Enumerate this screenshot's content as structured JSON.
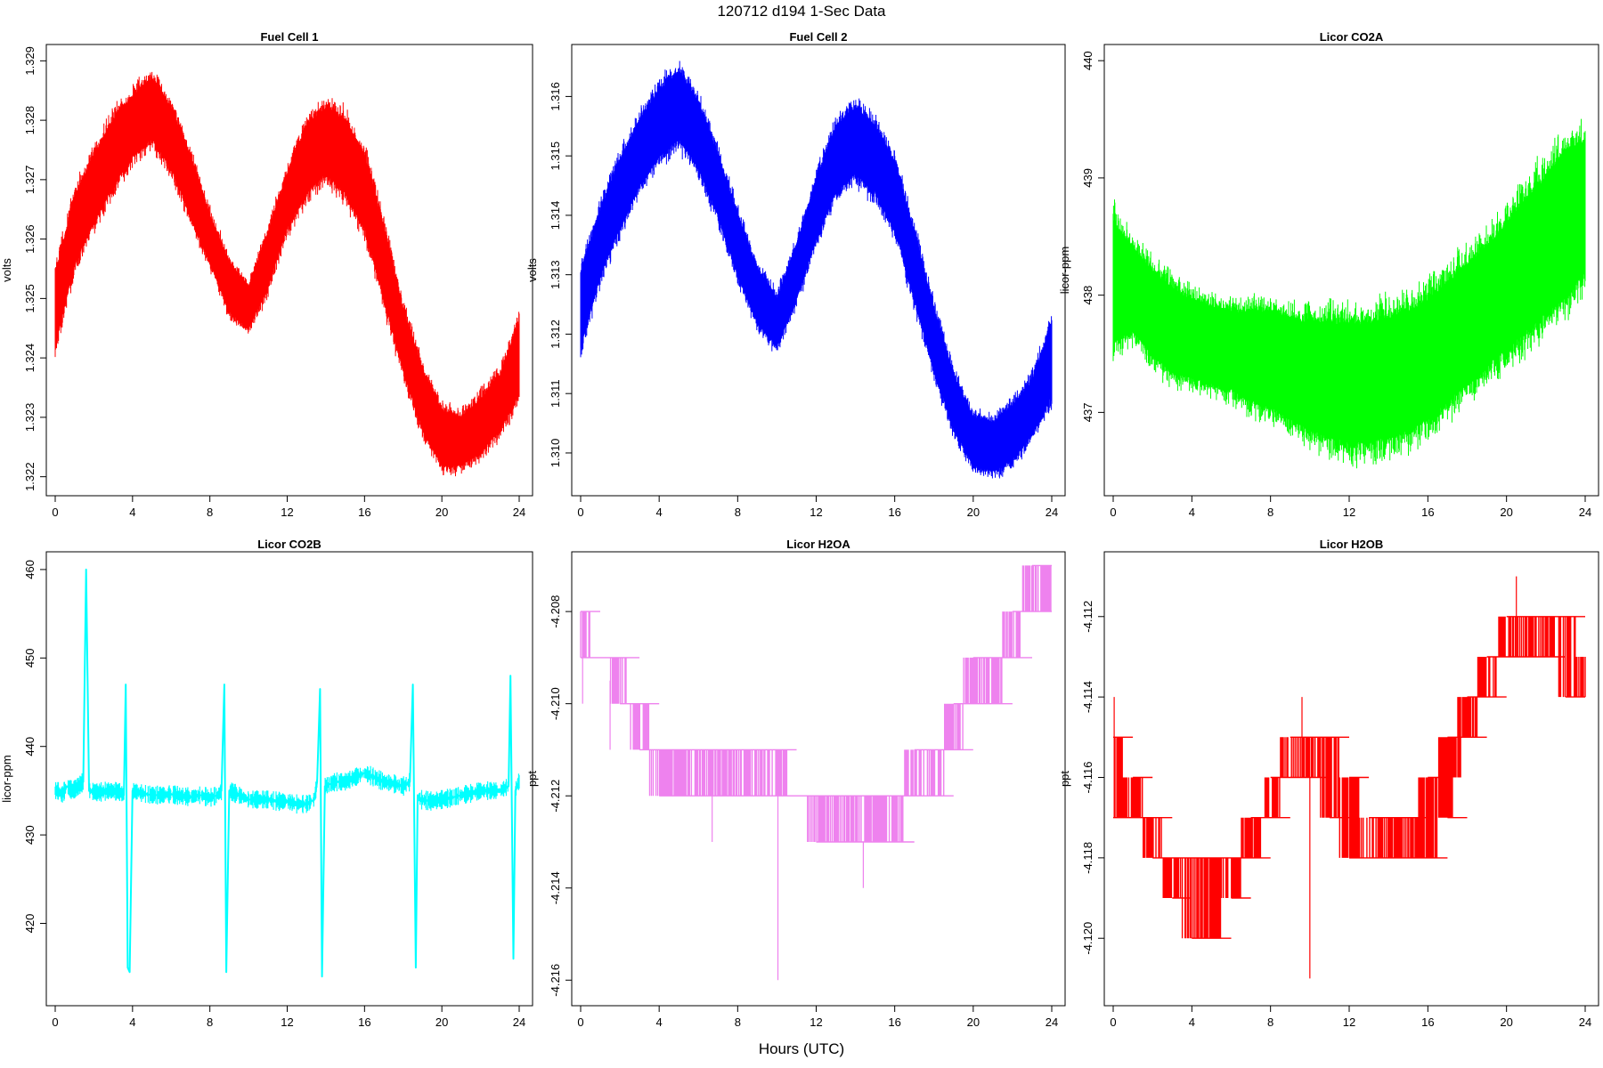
{
  "figure": {
    "title": "120712   d194   1-Sec Data",
    "xlabel": "Hours (UTC)"
  },
  "chart_data": [
    {
      "type": "line",
      "title": "Fuel Cell 1",
      "ylabel": "volts",
      "color": "#ff0000",
      "xlim": [
        0,
        24
      ],
      "xticks": [
        0,
        4,
        8,
        12,
        16,
        20,
        24
      ],
      "ylim": [
        1.3218,
        1.3292
      ],
      "yticks": [
        1.322,
        1.323,
        1.324,
        1.325,
        1.326,
        1.327,
        1.328,
        1.329
      ],
      "ytick_labels": [
        "1.322",
        "1.323",
        "1.324",
        "1.325",
        "1.326",
        "1.327",
        "1.328",
        "1.329"
      ],
      "band": {
        "x": [
          0,
          1,
          2,
          3,
          4,
          5,
          6,
          7,
          8,
          9,
          10,
          11,
          12,
          13,
          14,
          15,
          16,
          17,
          18,
          19,
          20,
          21,
          22,
          23,
          24
        ],
        "low": [
          1.3242,
          1.3256,
          1.3263,
          1.3269,
          1.3274,
          1.3277,
          1.3272,
          1.3264,
          1.3256,
          1.3248,
          1.3245,
          1.3252,
          1.3262,
          1.3268,
          1.3271,
          1.3268,
          1.3262,
          1.325,
          1.3238,
          1.3228,
          1.3222,
          1.3222,
          1.3224,
          1.3228,
          1.3234
        ],
        "high": [
          1.3254,
          1.3267,
          1.3274,
          1.328,
          1.3284,
          1.3287,
          1.3282,
          1.3274,
          1.3264,
          1.3256,
          1.3252,
          1.3261,
          1.3271,
          1.3279,
          1.3282,
          1.328,
          1.3274,
          1.3262,
          1.3248,
          1.3238,
          1.3231,
          1.323,
          1.3233,
          1.3237,
          1.3246
        ]
      }
    },
    {
      "type": "line",
      "title": "Fuel Cell 2",
      "ylabel": "volts",
      "color": "#0000ff",
      "xlim": [
        0,
        24
      ],
      "xticks": [
        0,
        4,
        8,
        12,
        16,
        20,
        24
      ],
      "ylim": [
        1.3094,
        1.3168
      ],
      "yticks": [
        1.31,
        1.311,
        1.312,
        1.313,
        1.314,
        1.315,
        1.316
      ],
      "ytick_labels": [
        "1.310",
        "1.311",
        "1.312",
        "1.313",
        "1.314",
        "1.315",
        "1.316"
      ],
      "band": {
        "x": [
          0,
          1,
          2,
          3,
          4,
          5,
          6,
          7,
          8,
          9,
          10,
          11,
          12,
          13,
          14,
          15,
          16,
          17,
          18,
          19,
          20,
          21,
          22,
          23,
          24
        ],
        "low": [
          1.3118,
          1.313,
          1.3138,
          1.3145,
          1.315,
          1.3153,
          1.3148,
          1.314,
          1.313,
          1.3122,
          1.3118,
          1.3126,
          1.3136,
          1.3144,
          1.3147,
          1.3144,
          1.3138,
          1.3126,
          1.3114,
          1.3104,
          1.3098,
          1.3097,
          1.3099,
          1.3103,
          1.311
        ],
        "high": [
          1.313,
          1.3141,
          1.3149,
          1.3156,
          1.3161,
          1.3164,
          1.3159,
          1.315,
          1.314,
          1.3131,
          1.3126,
          1.3135,
          1.3146,
          1.3155,
          1.3158,
          1.3155,
          1.3149,
          1.3137,
          1.3124,
          1.3113,
          1.3106,
          1.3105,
          1.3108,
          1.3112,
          1.3122
        ]
      }
    },
    {
      "type": "line",
      "title": "Licor CO2A",
      "ylabel": "licor-ppm",
      "color": "#00ff00",
      "xlim": [
        0,
        24
      ],
      "xticks": [
        0,
        4,
        8,
        12,
        16,
        20,
        24
      ],
      "ylim": [
        436.35,
        440.1
      ],
      "yticks": [
        437,
        438,
        439,
        440
      ],
      "ytick_labels": [
        "437",
        "438",
        "439",
        "440"
      ],
      "band": {
        "x": [
          0,
          1,
          2,
          3,
          4,
          5,
          6,
          7,
          8,
          9,
          10,
          11,
          12,
          13,
          14,
          15,
          16,
          17,
          18,
          19,
          20,
          21,
          22,
          23,
          24
        ],
        "low": [
          437.6,
          437.7,
          437.5,
          437.35,
          437.3,
          437.25,
          437.2,
          437.1,
          437.05,
          436.95,
          436.85,
          436.8,
          436.75,
          436.75,
          436.8,
          436.85,
          436.95,
          437.1,
          437.25,
          437.4,
          437.55,
          437.7,
          437.85,
          438.0,
          438.2
        ],
        "high": [
          438.6,
          438.4,
          438.2,
          438.05,
          437.95,
          437.9,
          437.85,
          437.85,
          437.85,
          437.8,
          437.75,
          437.75,
          437.75,
          437.75,
          437.8,
          437.85,
          437.95,
          438.1,
          438.25,
          438.4,
          438.6,
          438.8,
          439.0,
          439.2,
          439.3
        ]
      }
    },
    {
      "type": "line",
      "title": "Licor CO2B",
      "ylabel": "licor-ppm",
      "color": "#00ffff",
      "xlim": [
        0,
        24
      ],
      "xticks": [
        0,
        4,
        8,
        12,
        16,
        20,
        24
      ],
      "ylim": [
        411.5,
        461.5
      ],
      "yticks": [
        420,
        430,
        440,
        450,
        460
      ],
      "ytick_labels": [
        "420",
        "430",
        "440",
        "450",
        "460"
      ],
      "x": [
        0,
        0.15,
        0.35,
        0.6,
        0.9,
        1.2,
        1.45,
        1.6,
        1.75,
        2.2,
        2.8,
        3.3,
        3.55,
        3.65,
        3.75,
        3.85,
        4.0,
        4.5,
        5.0,
        5.5,
        6.0,
        6.5,
        7.0,
        7.5,
        8.0,
        8.4,
        8.6,
        8.75,
        8.85,
        9.0,
        9.5,
        10.0,
        10.5,
        11.0,
        11.5,
        12.0,
        12.5,
        13.0,
        13.4,
        13.55,
        13.7,
        13.8,
        13.95,
        14.5,
        15.0,
        15.5,
        16.0,
        16.5,
        17.0,
        17.5,
        18.0,
        18.35,
        18.5,
        18.65,
        18.75,
        18.9,
        19.5,
        20.0,
        20.5,
        21.0,
        21.5,
        22.0,
        22.5,
        23.0,
        23.45,
        23.55,
        23.7,
        23.8,
        23.95,
        24.0
      ],
      "y": [
        435,
        435,
        434.5,
        435.5,
        435,
        435.5,
        436,
        460,
        435,
        434.8,
        435,
        434.9,
        434.5,
        447,
        415,
        414.5,
        435,
        434.7,
        434.5,
        434.5,
        434.6,
        434.4,
        434.3,
        434.5,
        434.2,
        434.5,
        435,
        447,
        414.5,
        435,
        434.5,
        434,
        434,
        434,
        433.8,
        433.8,
        433.5,
        433.5,
        434,
        436,
        446.5,
        414,
        435.5,
        436,
        436,
        436.5,
        437,
        436.5,
        436,
        435.8,
        435.5,
        436,
        447,
        415,
        434.5,
        434,
        433.8,
        434,
        434.2,
        434.5,
        434.7,
        435,
        435,
        435,
        435.5,
        448,
        416,
        435,
        436,
        436
      ]
    },
    {
      "type": "line",
      "title": "Licor H2OA",
      "ylabel": "ppt",
      "color": "#ee82ee",
      "xlim": [
        0,
        24
      ],
      "xticks": [
        0,
        4,
        8,
        12,
        16,
        20,
        24
      ],
      "ylim": [
        -4.2164,
        -4.2068
      ],
      "yticks": [
        -4.216,
        -4.214,
        -4.212,
        -4.21,
        -4.208
      ],
      "ytick_labels": [
        "-4.216",
        "-4.214",
        "-4.212",
        "-4.210",
        "-4.208"
      ],
      "steps": {
        "x": [
          0,
          1,
          2,
          3,
          4,
          5,
          6,
          7,
          8,
          9,
          10,
          11,
          12,
          13,
          14,
          15,
          16,
          17,
          18,
          19,
          20,
          21,
          22,
          23,
          24
        ],
        "low": [
          -4.209,
          -4.209,
          -4.21,
          -4.211,
          -4.212,
          -4.212,
          -4.212,
          -4.212,
          -4.212,
          -4.212,
          -4.212,
          -4.212,
          -4.213,
          -4.213,
          -4.213,
          -4.213,
          -4.213,
          -4.212,
          -4.212,
          -4.211,
          -4.21,
          -4.21,
          -4.209,
          -4.208,
          -4.208
        ],
        "high": [
          -4.208,
          -4.209,
          -4.209,
          -4.21,
          -4.211,
          -4.211,
          -4.211,
          -4.211,
          -4.211,
          -4.211,
          -4.211,
          -4.212,
          -4.212,
          -4.212,
          -4.212,
          -4.212,
          -4.212,
          -4.211,
          -4.211,
          -4.21,
          -4.209,
          -4.209,
          -4.208,
          -4.207,
          -4.207
        ]
      },
      "spikes": [
        {
          "x": 10.05,
          "y": -4.216
        },
        {
          "x": 6.7,
          "y": -4.213
        },
        {
          "x": 14.4,
          "y": -4.214
        },
        {
          "x": 0.1,
          "y": -4.21
        },
        {
          "x": 1.5,
          "y": -4.211
        }
      ]
    },
    {
      "type": "line",
      "title": "Licor H2OB",
      "ylabel": "ppt",
      "color": "#ff0000",
      "xlim": [
        0,
        24
      ],
      "xticks": [
        0,
        4,
        8,
        12,
        16,
        20,
        24
      ],
      "ylim": [
        -4.1215,
        -4.1105
      ],
      "yticks": [
        -4.12,
        -4.118,
        -4.116,
        -4.114,
        -4.112
      ],
      "ytick_labels": [
        "-4.120",
        "-4.118",
        "-4.116",
        "-4.114",
        "-4.112"
      ],
      "steps": {
        "x": [
          0,
          1,
          2,
          3,
          4,
          5,
          6,
          7,
          8,
          9,
          10,
          11,
          12,
          13,
          14,
          15,
          16,
          17,
          18,
          19,
          20,
          21,
          22,
          23,
          24
        ],
        "low": [
          -4.117,
          -4.117,
          -4.118,
          -4.119,
          -4.12,
          -4.12,
          -4.119,
          -4.118,
          -4.117,
          -4.116,
          -4.116,
          -4.117,
          -4.118,
          -4.118,
          -4.118,
          -4.118,
          -4.118,
          -4.117,
          -4.115,
          -4.114,
          -4.113,
          -4.113,
          -4.113,
          -4.114,
          -4.114
        ],
        "high": [
          -4.115,
          -4.116,
          -4.117,
          -4.118,
          -4.118,
          -4.118,
          -4.118,
          -4.117,
          -4.116,
          -4.115,
          -4.115,
          -4.115,
          -4.116,
          -4.117,
          -4.117,
          -4.117,
          -4.116,
          -4.115,
          -4.114,
          -4.113,
          -4.112,
          -4.112,
          -4.112,
          -4.112,
          -4.113
        ]
      },
      "spikes": [
        {
          "x": 10.0,
          "y": -4.121
        },
        {
          "x": 0.05,
          "y": -4.114
        },
        {
          "x": 9.6,
          "y": -4.114
        },
        {
          "x": 20.5,
          "y": -4.111
        }
      ]
    }
  ]
}
